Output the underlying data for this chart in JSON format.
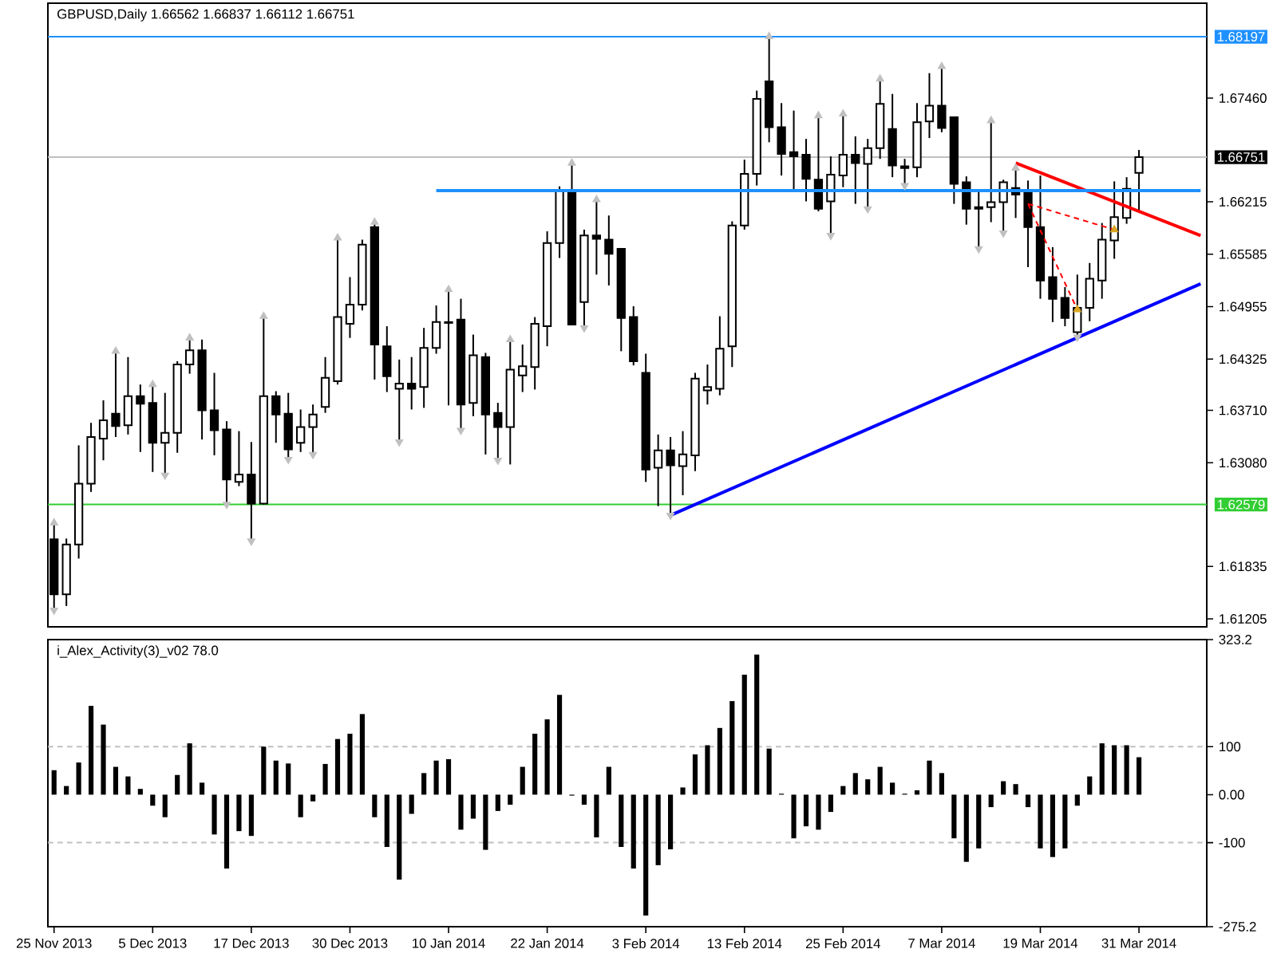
{
  "chart_data": [
    {
      "type": "candlestick",
      "title": "GBPUSD,Daily  1.66562 1.66837 1.66112 1.66751",
      "categories": [
        null,
        null,
        null,
        null,
        null,
        null,
        null,
        null,
        null,
        null,
        null,
        null,
        null,
        null,
        null,
        null,
        null,
        null,
        null,
        null,
        null,
        null,
        null,
        null,
        null,
        null,
        null,
        null,
        null,
        null,
        null,
        null,
        null,
        null,
        null,
        null,
        null,
        null,
        null,
        null,
        null,
        null,
        null,
        null,
        null,
        null,
        null,
        null,
        null,
        null,
        null,
        null,
        null,
        null,
        null,
        null,
        null,
        null,
        null,
        null,
        null,
        null,
        null,
        null,
        null,
        null,
        null,
        null,
        null,
        null,
        null,
        null,
        null,
        null,
        null,
        null,
        null,
        null,
        null,
        null,
        null,
        null,
        null,
        null,
        null,
        null,
        null,
        null,
        null,
        null,
        null,
        null,
        null,
        null
      ],
      "ohlc": [
        [
          1.6216,
          1.6236,
          1.6131,
          1.615
        ],
        [
          1.615,
          1.6217,
          1.6136,
          1.621
        ],
        [
          1.621,
          1.6329,
          1.6193,
          1.6283
        ],
        [
          1.6283,
          1.6356,
          1.6273,
          1.6339
        ],
        [
          1.6337,
          1.6383,
          1.6311,
          1.6359
        ],
        [
          1.6367,
          1.6442,
          1.6339,
          1.6352
        ],
        [
          1.6353,
          1.6435,
          1.6342,
          1.6388
        ],
        [
          1.6388,
          1.6402,
          1.6321,
          1.6379
        ],
        [
          1.638,
          1.6402,
          1.6297,
          1.6332
        ],
        [
          1.6332,
          1.6392,
          1.6293,
          1.6344
        ],
        [
          1.6344,
          1.643,
          1.632,
          1.6426
        ],
        [
          1.6426,
          1.6458,
          1.6415,
          1.6443
        ],
        [
          1.6443,
          1.6456,
          1.6336,
          1.6371
        ],
        [
          1.6371,
          1.6416,
          1.6317,
          1.6347
        ],
        [
          1.6348,
          1.6358,
          1.6258,
          1.6288
        ],
        [
          1.6285,
          1.6346,
          1.628,
          1.6294
        ],
        [
          1.6294,
          1.6333,
          1.6214,
          1.6259
        ],
        [
          1.6259,
          1.6484,
          1.6258,
          1.6388
        ],
        [
          1.6388,
          1.6394,
          1.6332,
          1.6366
        ],
        [
          1.6367,
          1.6392,
          1.6312,
          1.6324
        ],
        [
          1.6332,
          1.6372,
          1.6321,
          1.6351
        ],
        [
          1.6351,
          1.6378,
          1.6318,
          1.6366
        ],
        [
          1.6375,
          1.6435,
          1.6368,
          1.641
        ],
        [
          1.6406,
          1.6578,
          1.6402,
          1.6483
        ],
        [
          1.6475,
          1.6531,
          1.6458,
          1.6498
        ],
        [
          1.6498,
          1.6576,
          1.6491,
          1.657
        ],
        [
          1.6591,
          1.6597,
          1.6408,
          1.645
        ],
        [
          1.6448,
          1.6472,
          1.6393,
          1.6412
        ],
        [
          1.6397,
          1.6432,
          1.6333,
          1.6403
        ],
        [
          1.6403,
          1.6435,
          1.6372,
          1.6397
        ],
        [
          1.6399,
          1.647,
          1.6374,
          1.6446
        ],
        [
          1.6446,
          1.6497,
          1.6439,
          1.6477
        ],
        [
          1.6477,
          1.6516,
          1.6377,
          1.6476
        ],
        [
          1.648,
          1.6505,
          1.6347,
          1.6378
        ],
        [
          1.638,
          1.6462,
          1.6364,
          1.6437
        ],
        [
          1.6435,
          1.644,
          1.6318,
          1.6366
        ],
        [
          1.6368,
          1.638,
          1.6311,
          1.6351
        ],
        [
          1.6351,
          1.6456,
          1.6306,
          1.642
        ],
        [
          1.6413,
          1.645,
          1.6393,
          1.6424
        ],
        [
          1.6423,
          1.6483,
          1.6396,
          1.6475
        ],
        [
          1.6472,
          1.6586,
          1.6448,
          1.6572
        ],
        [
          1.6572,
          1.664,
          1.6554,
          1.6634
        ],
        [
          1.6634,
          1.6668,
          1.6473,
          1.6474
        ],
        [
          1.6501,
          1.6588,
          1.647,
          1.6581
        ],
        [
          1.6581,
          1.6624,
          1.6534,
          1.6577
        ],
        [
          1.6576,
          1.6605,
          1.6521,
          1.6559
        ],
        [
          1.6565,
          1.6566,
          1.6442,
          1.6482
        ],
        [
          1.6483,
          1.6496,
          1.6425,
          1.643
        ],
        [
          1.6416,
          1.6439,
          1.6285,
          1.63
        ],
        [
          1.6302,
          1.6342,
          1.6256,
          1.6323
        ],
        [
          1.6323,
          1.6339,
          1.6245,
          1.6305
        ],
        [
          1.6304,
          1.6346,
          1.6269,
          1.6318
        ],
        [
          1.6317,
          1.6416,
          1.6298,
          1.6409
        ],
        [
          1.6395,
          1.6426,
          1.6378,
          1.6399
        ],
        [
          1.6397,
          1.6484,
          1.6389,
          1.6445
        ],
        [
          1.6448,
          1.6598,
          1.6423,
          1.6593
        ],
        [
          1.6593,
          1.6672,
          1.6588,
          1.6655
        ],
        [
          1.6655,
          1.6755,
          1.6641,
          1.6745
        ],
        [
          1.6766,
          1.682,
          1.6693,
          1.6711
        ],
        [
          1.6711,
          1.674,
          1.6653,
          1.6679
        ],
        [
          1.6681,
          1.6731,
          1.6636,
          1.6676
        ],
        [
          1.6678,
          1.6697,
          1.6622,
          1.6649
        ],
        [
          1.6648,
          1.6725,
          1.661,
          1.6613
        ],
        [
          1.6622,
          1.6676,
          1.6581,
          1.6654
        ],
        [
          1.6653,
          1.6727,
          1.6639,
          1.6678
        ],
        [
          1.6678,
          1.67,
          1.6619,
          1.6668
        ],
        [
          1.6667,
          1.6697,
          1.6613,
          1.6686
        ],
        [
          1.6686,
          1.6769,
          1.6673,
          1.6739
        ],
        [
          1.6709,
          1.6751,
          1.6651,
          1.6665
        ],
        [
          1.6664,
          1.6673,
          1.6641,
          1.6662
        ],
        [
          1.6663,
          1.674,
          1.6651,
          1.6717
        ],
        [
          1.6718,
          1.6776,
          1.6698,
          1.6737
        ],
        [
          1.6737,
          1.6784,
          1.6705,
          1.671
        ],
        [
          1.6723,
          1.6723,
          1.6619,
          1.6643
        ],
        [
          1.6645,
          1.6652,
          1.6594,
          1.6613
        ],
        [
          1.6615,
          1.6634,
          1.6565,
          1.6613
        ],
        [
          1.6615,
          1.6719,
          1.6597,
          1.6621
        ],
        [
          1.6621,
          1.6648,
          1.6584,
          1.6645
        ],
        [
          1.6638,
          1.6662,
          1.6602,
          1.663
        ],
        [
          1.6633,
          1.6647,
          1.6543,
          1.6591
        ],
        [
          1.6591,
          1.6653,
          1.6505,
          1.6527
        ],
        [
          1.6531,
          1.6567,
          1.6477,
          1.6505
        ],
        [
          1.6506,
          1.6519,
          1.6472,
          1.6482
        ],
        [
          1.6465,
          1.6534,
          1.6459,
          1.6494
        ],
        [
          1.6494,
          1.6548,
          1.6478,
          1.6529
        ],
        [
          1.6527,
          1.6596,
          1.6505,
          1.6576
        ],
        [
          1.6575,
          1.6646,
          1.6553,
          1.6603
        ],
        [
          1.6602,
          1.6651,
          1.6595,
          1.6637
        ],
        [
          1.66562,
          1.66837,
          1.66112,
          1.66751
        ],
        null,
        null,
        null,
        null,
        null
      ],
      "ylim": [
        1.6111,
        1.686
      ],
      "yticks": [
        {
          "value": 1.6746,
          "label": "1.67460"
        },
        1.66215,
        1.65585,
        1.64955,
        1.64325,
        {
          "value": 1.6371,
          "label": "1.63710"
        },
        {
          "value": 1.6308,
          "label": "1.63080"
        },
        1.61835,
        1.61205
      ],
      "tick_labels": "y",
      "ref_lines": [
        {
          "axis": "y",
          "value": 1.68197,
          "label": "1.68197",
          "color": "#1e90ff"
        },
        {
          "axis": "y",
          "value": 1.66751,
          "label": "1.66751",
          "color": "#c0c0c0"
        },
        {
          "axis": "y",
          "value": 1.62579,
          "label": "1.62579",
          "color": "#32cd32"
        }
      ],
      "series": [
        {
          "type": "line",
          "color": "#0000ff",
          "line_style": "solid",
          "values": [
            null,
            null,
            null,
            null,
            null,
            null,
            null,
            null,
            null,
            null,
            null,
            null,
            null,
            null,
            null,
            null,
            null,
            null,
            null,
            null,
            null,
            null,
            null,
            null,
            null,
            null,
            null,
            null,
            null,
            null,
            null,
            null,
            null,
            null,
            null,
            null,
            null,
            null,
            null,
            null,
            null,
            null,
            null,
            null,
            null,
            null,
            null,
            null,
            null,
            null,
            1.6245,
            null,
            null,
            null,
            null,
            null,
            null,
            null,
            null,
            null,
            null,
            null,
            null,
            null,
            null,
            null,
            null,
            null,
            null,
            null,
            null,
            null,
            null,
            null,
            null,
            null,
            null,
            null,
            null,
            null,
            null,
            null,
            null,
            null,
            null,
            null,
            null,
            null,
            null,
            null,
            null,
            null,
            null,
            1.6523
          ]
        },
        {
          "type": "line",
          "color": "#ff0000",
          "line_style": "solid",
          "values": [
            null,
            null,
            null,
            null,
            null,
            null,
            null,
            null,
            null,
            null,
            null,
            null,
            null,
            null,
            null,
            null,
            null,
            null,
            null,
            null,
            null,
            null,
            null,
            null,
            null,
            null,
            null,
            null,
            null,
            null,
            null,
            null,
            null,
            null,
            null,
            null,
            null,
            null,
            null,
            null,
            null,
            null,
            null,
            null,
            null,
            null,
            null,
            null,
            null,
            null,
            null,
            null,
            null,
            null,
            null,
            null,
            null,
            null,
            null,
            null,
            null,
            null,
            null,
            null,
            null,
            null,
            null,
            null,
            null,
            null,
            null,
            null,
            null,
            null,
            null,
            null,
            null,
            null,
            1.6668,
            null,
            null,
            null,
            null,
            null,
            null,
            null,
            null,
            null,
            null,
            null,
            null,
            null,
            null,
            1.6581
          ]
        },
        {
          "type": "line",
          "color": "#1e90ff",
          "line_style": "solid",
          "values": [
            null,
            null,
            null,
            null,
            null,
            null,
            null,
            null,
            null,
            null,
            null,
            null,
            null,
            null,
            null,
            null,
            null,
            null,
            null,
            null,
            null,
            null,
            null,
            null,
            null,
            null,
            null,
            null,
            null,
            null,
            null,
            1.6635,
            null,
            null,
            null,
            null,
            null,
            null,
            null,
            null,
            null,
            null,
            null,
            null,
            null,
            null,
            null,
            null,
            null,
            null,
            null,
            null,
            null,
            null,
            null,
            null,
            null,
            null,
            null,
            null,
            null,
            null,
            null,
            null,
            null,
            null,
            null,
            null,
            null,
            null,
            null,
            null,
            null,
            null,
            null,
            null,
            null,
            null,
            null,
            null,
            null,
            null,
            null,
            null,
            null,
            null,
            null,
            null,
            null,
            null,
            null,
            null,
            null,
            1.6635
          ]
        },
        {
          "type": "line",
          "color": "#ff0000",
          "line_style": "dashed",
          "values": [
            null,
            null,
            null,
            null,
            null,
            null,
            null,
            null,
            null,
            null,
            null,
            null,
            null,
            null,
            null,
            null,
            null,
            null,
            null,
            null,
            null,
            null,
            null,
            null,
            null,
            null,
            null,
            null,
            null,
            null,
            null,
            null,
            null,
            null,
            null,
            null,
            null,
            null,
            null,
            null,
            null,
            null,
            null,
            null,
            null,
            null,
            null,
            null,
            null,
            null,
            null,
            null,
            null,
            null,
            null,
            null,
            null,
            null,
            null,
            null,
            null,
            null,
            null,
            null,
            null,
            null,
            null,
            null,
            null,
            null,
            null,
            null,
            null,
            null,
            null,
            null,
            null,
            null,
            null,
            1.6619,
            null,
            null,
            null,
            null,
            null,
            null,
            1.6588,
            null,
            null,
            null,
            null,
            null,
            null,
            null
          ]
        },
        {
          "type": "line",
          "color": "#ff0000",
          "line_style": "dashed",
          "values": [
            null,
            null,
            null,
            null,
            null,
            null,
            null,
            null,
            null,
            null,
            null,
            null,
            null,
            null,
            null,
            null,
            null,
            null,
            null,
            null,
            null,
            null,
            null,
            null,
            null,
            null,
            null,
            null,
            null,
            null,
            null,
            null,
            null,
            null,
            null,
            null,
            null,
            null,
            null,
            null,
            null,
            null,
            null,
            null,
            null,
            null,
            null,
            null,
            null,
            null,
            null,
            null,
            null,
            null,
            null,
            null,
            null,
            null,
            null,
            null,
            null,
            null,
            null,
            null,
            null,
            null,
            null,
            null,
            null,
            null,
            null,
            null,
            null,
            null,
            null,
            null,
            null,
            null,
            null,
            1.6619,
            null,
            null,
            null,
            1.6492,
            null,
            null,
            null,
            null,
            null,
            null,
            null,
            null,
            null,
            null
          ]
        },
        {
          "type": "scatter",
          "color": "#daa520",
          "marker": "triangle",
          "values": [
            null,
            null,
            null,
            null,
            null,
            null,
            null,
            null,
            null,
            null,
            null,
            null,
            null,
            null,
            null,
            null,
            null,
            null,
            null,
            null,
            null,
            null,
            null,
            null,
            null,
            null,
            null,
            null,
            null,
            null,
            null,
            null,
            null,
            null,
            null,
            null,
            null,
            null,
            null,
            null,
            null,
            null,
            null,
            null,
            null,
            null,
            null,
            null,
            null,
            null,
            null,
            null,
            null,
            null,
            null,
            null,
            null,
            null,
            null,
            null,
            null,
            null,
            null,
            null,
            null,
            null,
            null,
            null,
            null,
            null,
            null,
            null,
            null,
            null,
            null,
            null,
            null,
            null,
            null,
            null,
            null,
            null,
            null,
            1.6492,
            null,
            null,
            1.6588,
            null,
            null,
            null,
            null,
            null,
            null,
            null
          ]
        },
        {
          "type": "scatter",
          "color": "#c0c0c0",
          "marker": "triangle",
          "values": [
            1.6236,
            null,
            null,
            null,
            null,
            1.6442,
            null,
            null,
            1.6402,
            null,
            null,
            1.6458,
            null,
            null,
            null,
            null,
            null,
            1.6484,
            null,
            null,
            null,
            null,
            null,
            1.6578,
            null,
            null,
            1.6597,
            null,
            null,
            null,
            null,
            null,
            1.6516,
            null,
            null,
            null,
            null,
            1.6456,
            null,
            null,
            null,
            null,
            1.6668,
            null,
            1.6624,
            null,
            null,
            null,
            null,
            null,
            null,
            null,
            null,
            null,
            null,
            null,
            null,
            null,
            1.682,
            null,
            null,
            null,
            1.6725,
            null,
            1.6727,
            null,
            null,
            1.6769,
            null,
            null,
            null,
            null,
            1.6784,
            null,
            null,
            null,
            1.6719,
            null,
            1.6662,
            null,
            null,
            null,
            null,
            null,
            null,
            null,
            null,
            null,
            null,
            null,
            null,
            null,
            null,
            null
          ]
        },
        {
          "type": "scatter",
          "color": "#c0c0c0",
          "marker": "triangle",
          "values": [
            1.6131,
            null,
            null,
            null,
            null,
            null,
            null,
            null,
            null,
            1.6293,
            null,
            null,
            null,
            null,
            1.6258,
            null,
            1.6214,
            null,
            null,
            1.6312,
            null,
            1.6318,
            null,
            null,
            null,
            null,
            null,
            null,
            1.6333,
            null,
            null,
            null,
            null,
            1.6347,
            null,
            null,
            1.6311,
            null,
            null,
            null,
            null,
            null,
            null,
            1.647,
            null,
            null,
            null,
            null,
            null,
            null,
            1.6245,
            null,
            null,
            null,
            null,
            null,
            null,
            null,
            null,
            null,
            null,
            null,
            null,
            1.6581,
            null,
            null,
            1.6613,
            null,
            null,
            1.6641,
            null,
            null,
            null,
            null,
            null,
            1.6565,
            null,
            1.6584,
            null,
            null,
            null,
            null,
            null,
            1.6459,
            null,
            null,
            null,
            null,
            null,
            null,
            null,
            null,
            null,
            null
          ]
        }
      ]
    },
    {
      "type": "bar",
      "title": "i_Alex_Activity(3)_v02 78.0",
      "categories": [
        "25 Nov 2013",
        null,
        null,
        null,
        null,
        null,
        null,
        null,
        "5 Dec 2013",
        null,
        null,
        null,
        null,
        null,
        null,
        null,
        "17 Dec 2013",
        null,
        null,
        null,
        null,
        null,
        null,
        null,
        "30 Dec 2013",
        null,
        null,
        null,
        null,
        null,
        null,
        null,
        "10 Jan 2014",
        null,
        null,
        null,
        null,
        null,
        null,
        null,
        "22 Jan 2014",
        null,
        null,
        null,
        null,
        null,
        null,
        null,
        "3 Feb 2014",
        null,
        null,
        null,
        null,
        null,
        null,
        null,
        "13 Feb 2014",
        null,
        null,
        null,
        null,
        null,
        null,
        null,
        "25 Feb 2014",
        null,
        null,
        null,
        null,
        null,
        null,
        null,
        "7 Mar 2014",
        null,
        null,
        null,
        null,
        null,
        null,
        null,
        "19 Mar 2014",
        null,
        null,
        null,
        null,
        null,
        null,
        null,
        "31 Mar 2014",
        null,
        null,
        null,
        null,
        null
      ],
      "values": [
        51,
        18,
        67,
        185,
        146,
        58,
        38,
        12,
        -23,
        -47,
        41,
        107,
        25,
        -83,
        -154,
        -76,
        -86,
        100,
        71,
        65,
        -47,
        -14,
        64,
        116,
        127,
        168,
        -47,
        -109,
        -177,
        -40,
        45,
        71,
        74,
        -73,
        -50,
        -115,
        -34,
        -21,
        58,
        127,
        157,
        208,
        -2,
        -21,
        -89,
        58,
        -109,
        -154,
        -252,
        -147,
        -114,
        15,
        84,
        103,
        139,
        195,
        250,
        292,
        96,
        2,
        -91,
        -66,
        -73,
        -36,
        18,
        45,
        32,
        58,
        25,
        2,
        9,
        71,
        45,
        -91,
        -140,
        -112,
        -26,
        28,
        22,
        -26,
        -112,
        -130,
        -112,
        -23,
        38,
        107,
        103,
        103,
        78,
        null,
        null,
        null,
        null,
        null
      ],
      "color": "#000000",
      "ylim": [
        -275.2,
        323.2
      ],
      "yticks": [
        323.2,
        100,
        {
          "value": 0,
          "label": "0.00"
        },
        -100,
        -275.2
      ],
      "ref_lines": [
        {
          "axis": "y",
          "value": 100,
          "color": "#c0c0c0",
          "line_style": "dashed"
        },
        {
          "axis": "y",
          "value": -100,
          "color": "#c0c0c0",
          "line_style": "dashed"
        }
      ]
    }
  ]
}
